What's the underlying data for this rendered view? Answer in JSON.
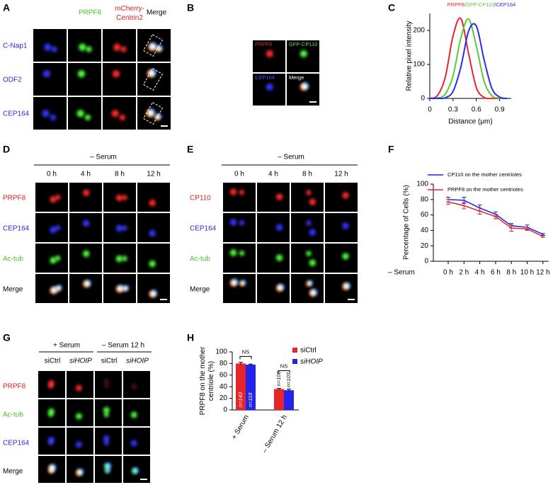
{
  "figure": {
    "A": {
      "label": "A",
      "columns": [
        "PRPF8",
        [
          "mCherry-",
          "Centrin2"
        ],
        "Merge"
      ],
      "rows": [
        "C-Nap1",
        "ODF2",
        "CEP164"
      ]
    },
    "B": {
      "label": "B",
      "tiles": [
        "PRPF8",
        "GFP-CP110",
        "CEP164",
        "Merge"
      ]
    },
    "C": {
      "label": "C"
    },
    "D": {
      "label": "D",
      "condition": "– Serum",
      "columns": [
        "0 h",
        "4 h",
        "8 h",
        "12 h"
      ],
      "rows": [
        "PRPF8",
        "CEP164",
        "Ac-tub",
        "Merge"
      ]
    },
    "E": {
      "label": "E",
      "condition": "– Serum",
      "columns": [
        "0 h",
        "4 h",
        "8 h",
        "12 h"
      ],
      "rows": [
        "CP110",
        "CEP164",
        "Ac-tub",
        "Merge"
      ]
    },
    "F": {
      "label": "F"
    },
    "G": {
      "label": "G",
      "conditions": [
        "+ Serum",
        "– Serum 12 h"
      ],
      "columns": [
        "siCtrl",
        "siHOIP",
        "siCtrl",
        "siHOIP"
      ],
      "rows": [
        "PRPF8",
        "Ac-tub",
        "CEP164",
        "Merge"
      ]
    },
    "H": {
      "label": "H"
    }
  },
  "chart_data": [
    {
      "type": "line",
      "title": [
        "PRPF8",
        "/GFP-CP110",
        "/CEP164"
      ],
      "x_label": "Distance (μm)",
      "y_label": "Relative pixel intensity",
      "x": [
        0,
        0.1,
        0.2,
        0.3,
        0.4,
        0.5,
        0.6,
        0.7,
        0.8,
        0.9,
        1.0
      ],
      "series": [
        {
          "color": "#e8252a",
          "values": [
            0,
            9,
            63,
            184,
            235,
            132,
            32,
            3,
            0,
            0,
            0
          ]
        },
        {
          "color": "#5cc83a",
          "values": [
            0,
            1,
            13,
            67,
            177,
            234,
            154,
            51,
            8,
            1,
            0
          ]
        },
        {
          "color": "#2b2bf0",
          "values": [
            0,
            0,
            2,
            21,
            92,
            198,
            213,
            114,
            30,
            4,
            0
          ]
        }
      ],
      "xlim": [
        0,
        1.05
      ],
      "xticks": [
        0,
        0.3,
        0.6,
        0.9
      ],
      "ylim": [
        0,
        250
      ],
      "yticks": [
        0,
        100,
        200
      ]
    },
    {
      "type": "line",
      "x_label": "– Serum",
      "y_label": "Percentage of Cells (%)",
      "categories": [
        "0 h",
        "2 h",
        "4 h",
        "6 h",
        "8 h",
        "10 h",
        "12 h"
      ],
      "series": [
        {
          "name": "CP110 on the mother centrioles",
          "color": "#2020e8",
          "values": [
            80,
            79,
            69,
            61,
            46,
            44,
            35
          ],
          "errors": [
            3,
            4,
            4,
            3,
            3,
            3,
            1
          ]
        },
        {
          "name": "PRPF8 on the mother centrioles",
          "color": "#e3262b",
          "values": [
            77,
            72,
            65,
            58,
            43,
            42,
            32
          ],
          "errors": [
            3,
            4,
            4,
            3,
            4,
            2,
            1
          ]
        }
      ],
      "ylim": [
        0,
        100
      ],
      "yticks": [
        0,
        20,
        40,
        60,
        80,
        100
      ]
    },
    {
      "type": "bar",
      "y_label": [
        "PRPF8 on the mother",
        "centriole (%)"
      ],
      "categories": [
        "+ Serum",
        "– Serum 12 h"
      ],
      "series": [
        {
          "name": "siCtrl",
          "color": "#e8262a",
          "values": [
            80,
            36
          ],
          "errors": [
            2,
            1
          ],
          "n_labels": [
            "n=143",
            "n=106"
          ]
        },
        {
          "name": "siHOIP",
          "color": "#2323ee",
          "values": [
            78,
            34
          ],
          "errors": [
            1,
            2
          ],
          "n_labels": [
            "n=118",
            "n=107"
          ]
        }
      ],
      "brackets": [
        "NS",
        "NS"
      ],
      "ylim": [
        0,
        100
      ],
      "yticks": [
        0,
        20,
        40,
        60,
        80,
        100
      ]
    }
  ]
}
